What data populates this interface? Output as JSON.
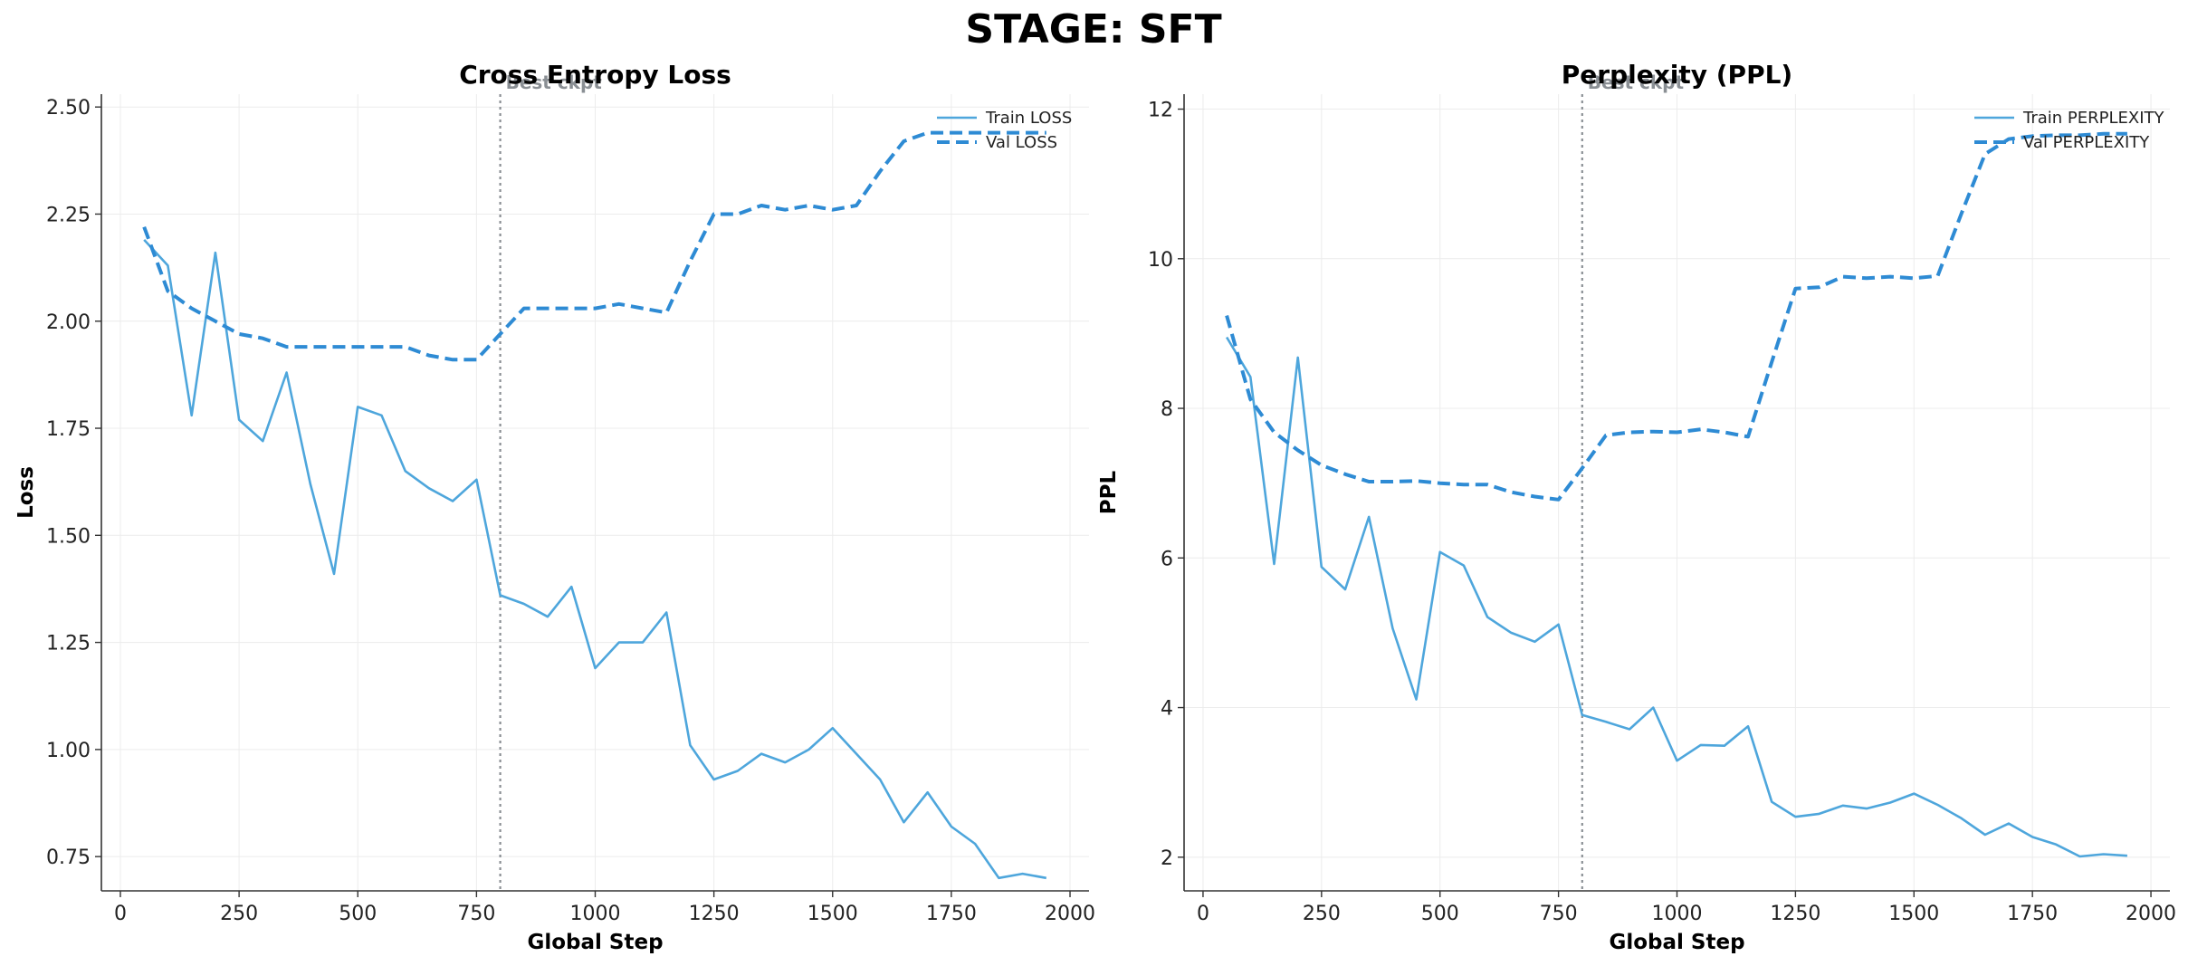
{
  "chart_title": "STAGE: SFT",
  "chart_data": [
    {
      "type": "line",
      "title": "Cross Entropy Loss",
      "xlabel": "Global Step",
      "ylabel": "Loss",
      "xlim": [
        -40,
        2040
      ],
      "ylim": [
        0.67,
        2.53
      ],
      "xticks": [
        0,
        250,
        500,
        750,
        1000,
        1250,
        1500,
        1750,
        2000
      ],
      "xtick_labels": [
        "0",
        "250",
        "500",
        "750",
        "1000",
        "1250",
        "1500",
        "1750",
        "2000"
      ],
      "yticks": [
        0.75,
        1.0,
        1.25,
        1.5,
        1.75,
        2.0,
        2.25,
        2.5
      ],
      "ytick_labels": [
        "0.75",
        "1.00",
        "1.25",
        "1.50",
        "1.75",
        "2.00",
        "2.25",
        "2.50"
      ],
      "grid": true,
      "legend_position": "top-right",
      "annotation": {
        "x": 800,
        "label": "Best ckpt"
      },
      "series": [
        {
          "name": "Train LOSS",
          "style": "solid",
          "color": "#4ea6dc",
          "x": [
            50,
            100,
            150,
            200,
            250,
            300,
            350,
            400,
            450,
            500,
            550,
            600,
            650,
            700,
            750,
            800,
            850,
            900,
            950,
            1000,
            1050,
            1100,
            1150,
            1200,
            1250,
            1300,
            1350,
            1400,
            1450,
            1500,
            1550,
            1600,
            1650,
            1700,
            1750,
            1800,
            1850,
            1900,
            1950
          ],
          "y": [
            2.19,
            2.13,
            1.78,
            2.16,
            1.77,
            1.72,
            1.88,
            1.62,
            1.41,
            1.8,
            1.78,
            1.65,
            1.61,
            1.58,
            1.63,
            1.36,
            1.34,
            1.31,
            1.38,
            1.19,
            1.25,
            1.25,
            1.32,
            1.01,
            0.93,
            0.95,
            0.99,
            0.97,
            1.0,
            1.05,
            0.99,
            0.93,
            0.83,
            0.9,
            0.82,
            0.78,
            0.7,
            0.71,
            0.7
          ]
        },
        {
          "name": "Val LOSS",
          "style": "dashed",
          "color": "#2e8bd4",
          "x": [
            50,
            100,
            150,
            200,
            250,
            300,
            350,
            400,
            450,
            500,
            550,
            600,
            650,
            700,
            750,
            800,
            850,
            900,
            950,
            1000,
            1050,
            1100,
            1150,
            1200,
            1250,
            1300,
            1350,
            1400,
            1450,
            1500,
            1550,
            1600,
            1650,
            1700,
            1750,
            1800,
            1850,
            1900,
            1950
          ],
          "y": [
            2.22,
            2.07,
            2.03,
            2.0,
            1.97,
            1.96,
            1.94,
            1.94,
            1.94,
            1.94,
            1.94,
            1.94,
            1.92,
            1.91,
            1.91,
            1.97,
            2.03,
            2.03,
            2.03,
            2.03,
            2.04,
            2.03,
            2.02,
            2.14,
            2.25,
            2.25,
            2.27,
            2.26,
            2.27,
            2.26,
            2.27,
            2.35,
            2.42,
            2.44,
            2.44,
            2.44,
            2.44,
            2.44,
            2.44
          ]
        }
      ]
    },
    {
      "type": "line",
      "title": "Perplexity (PPL)",
      "xlabel": "Global Step",
      "ylabel": "PPL",
      "xlim": [
        -40,
        2040
      ],
      "ylim": [
        1.55,
        12.2
      ],
      "xticks": [
        0,
        250,
        500,
        750,
        1000,
        1250,
        1500,
        1750,
        2000
      ],
      "xtick_labels": [
        "0",
        "250",
        "500",
        "750",
        "1000",
        "1250",
        "1500",
        "1750",
        "2000"
      ],
      "yticks": [
        2,
        4,
        6,
        8,
        10,
        12
      ],
      "ytick_labels": [
        "2",
        "4",
        "6",
        "8",
        "10",
        "12"
      ],
      "grid": true,
      "legend_position": "top-right",
      "annotation": {
        "x": 800,
        "label": "Best ckpt"
      },
      "series": [
        {
          "name": "Train PERPLEXITY",
          "style": "solid",
          "color": "#4ea6dc",
          "x": [
            50,
            100,
            150,
            200,
            250,
            300,
            350,
            400,
            450,
            500,
            550,
            600,
            650,
            700,
            750,
            800,
            850,
            900,
            950,
            1000,
            1050,
            1100,
            1150,
            1200,
            1250,
            1300,
            1350,
            1400,
            1450,
            1500,
            1550,
            1600,
            1650,
            1700,
            1750,
            1800,
            1850,
            1900,
            1950
          ],
          "y": [
            8.95,
            8.42,
            5.92,
            8.68,
            5.88,
            5.58,
            6.55,
            5.06,
            4.11,
            6.08,
            5.9,
            5.21,
            5.0,
            4.88,
            5.11,
            3.9,
            3.81,
            3.71,
            4.0,
            3.29,
            3.5,
            3.49,
            3.75,
            2.74,
            2.54,
            2.58,
            2.69,
            2.65,
            2.73,
            2.85,
            2.7,
            2.52,
            2.3,
            2.45,
            2.27,
            2.17,
            2.01,
            2.04,
            2.02
          ]
        },
        {
          "name": "Val PERPLEXITY",
          "style": "dashed",
          "color": "#2e8bd4",
          "x": [
            50,
            100,
            150,
            200,
            250,
            300,
            350,
            400,
            450,
            500,
            550,
            600,
            650,
            700,
            750,
            800,
            850,
            900,
            950,
            1000,
            1050,
            1100,
            1150,
            1200,
            1250,
            1300,
            1350,
            1400,
            1450,
            1500,
            1550,
            1600,
            1650,
            1700,
            1750,
            1800,
            1850,
            1900,
            1950
          ],
          "y": [
            9.24,
            8.12,
            7.68,
            7.44,
            7.24,
            7.12,
            7.02,
            7.02,
            7.03,
            7.0,
            6.98,
            6.98,
            6.88,
            6.82,
            6.78,
            7.2,
            7.64,
            7.68,
            7.69,
            7.68,
            7.72,
            7.68,
            7.62,
            8.62,
            9.6,
            9.62,
            9.76,
            9.74,
            9.76,
            9.74,
            9.77,
            10.6,
            11.4,
            11.6,
            11.64,
            11.65,
            11.65,
            11.67,
            11.67
          ]
        }
      ]
    }
  ]
}
